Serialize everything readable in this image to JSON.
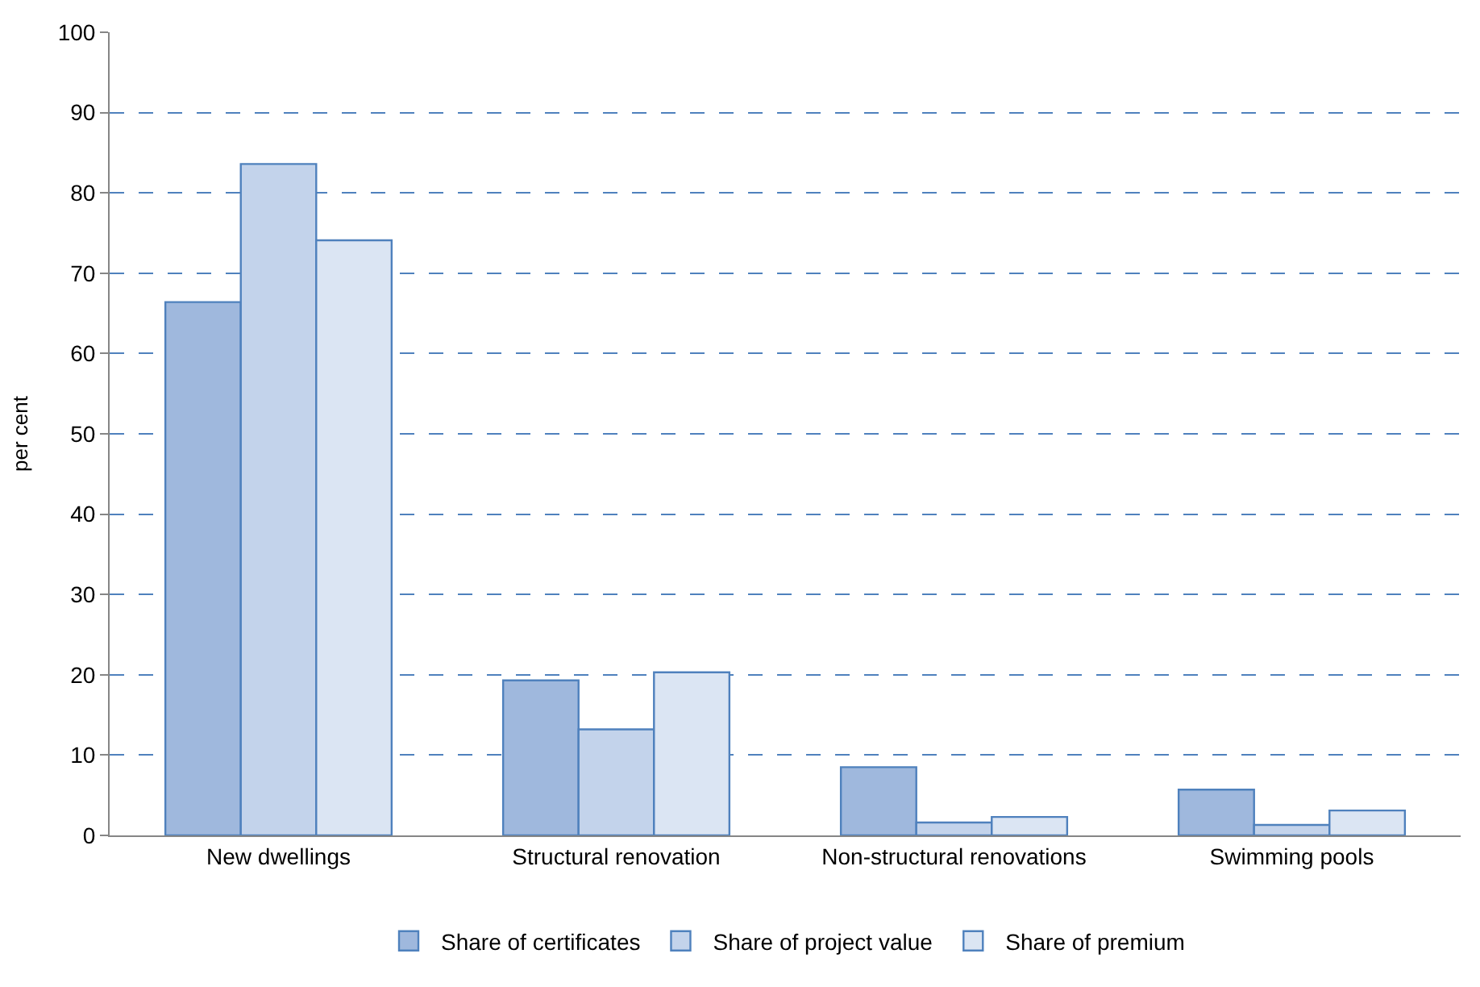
{
  "chart_data": {
    "type": "bar",
    "ylabel": "per cent",
    "categories": [
      "New dwellings",
      "Structural renovation",
      "Non-structural renovations",
      "Swimming pools"
    ],
    "series": [
      {
        "name": "Share of certificates",
        "color": "#9fb8dd",
        "values": [
          66.4,
          19.3,
          8.5,
          5.7
        ]
      },
      {
        "name": "Share of project value",
        "color": "#c3d3eb",
        "values": [
          83.6,
          13.2,
          1.6,
          1.3
        ]
      },
      {
        "name": "Share of premium",
        "color": "#dbe5f3",
        "values": [
          74.1,
          20.3,
          2.3,
          3.1
        ]
      }
    ],
    "ylim": [
      0,
      100
    ],
    "yticks": [
      0,
      10,
      20,
      30,
      40,
      50,
      60,
      70,
      80,
      90,
      100
    ],
    "grid": "y",
    "legend": "bottom"
  }
}
